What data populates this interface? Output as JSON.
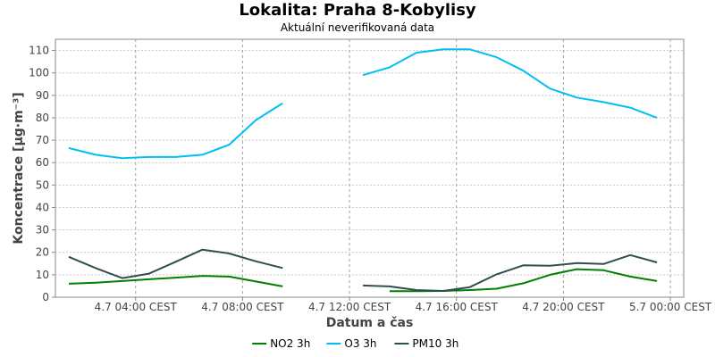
{
  "title": "Lokalita: Praha 8-Kobylisy",
  "subtitle": "Aktuální neverifikovaná data",
  "chart_data": {
    "type": "line",
    "title": "Lokalita: Praha 8-Kobylisy",
    "subtitle": "Aktuální neverifikovaná data",
    "xlabel": "Datum a čas",
    "ylabel": "Koncentrace [µg·m⁻³]",
    "ylim": [
      0,
      115
    ],
    "yticks": [
      0,
      10,
      20,
      30,
      40,
      50,
      60,
      70,
      80,
      90,
      100,
      110
    ],
    "x_range": [
      "4.7 01:00",
      "5.7 00:30"
    ],
    "x_ticks": [
      {
        "at": "4.7 04:00",
        "label": "4.7 04:00 CEST"
      },
      {
        "at": "4.7 08:00",
        "label": "4.7 08:00 CEST"
      },
      {
        "at": "4.7 12:00",
        "label": "4.7 12:00 CEST"
      },
      {
        "at": "4.7 16:00",
        "label": "4.7 16:00 CEST"
      },
      {
        "at": "4.7 20:00",
        "label": "4.7 20:00 CEST"
      },
      {
        "at": "5.7 00:00",
        "label": "5.7 00:00 CEST"
      }
    ],
    "grid": true,
    "legend_position": "bottom",
    "x": [
      "4.7 01:30",
      "4.7 02:30",
      "4.7 03:30",
      "4.7 04:30",
      "4.7 05:30",
      "4.7 06:30",
      "4.7 07:30",
      "4.7 08:30",
      "4.7 09:30",
      "4.7 10:30",
      "4.7 11:30",
      "4.7 12:30",
      "4.7 13:30",
      "4.7 14:30",
      "4.7 15:30",
      "4.7 16:30",
      "4.7 17:30",
      "4.7 18:30",
      "4.7 19:30",
      "4.7 20:30",
      "4.7 21:30",
      "4.7 22:30",
      "4.7 23:30",
      "5.7 00:30"
    ],
    "series": [
      {
        "name": "NO2 3h",
        "color": "#008000",
        "values": [
          6,
          6.5,
          7.2,
          8,
          8.7,
          9.5,
          9.2,
          7,
          4.8,
          null,
          null,
          null,
          2.7,
          2.7,
          2.8,
          3.2,
          3.8,
          6.2,
          10,
          12.5,
          12,
          9.2,
          7.2,
          null
        ]
      },
      {
        "name": "O3 3h",
        "color": "#00bff3",
        "values": [
          66.5,
          63.5,
          62,
          62.5,
          62.5,
          63.5,
          68,
          79,
          86.5,
          null,
          null,
          99,
          102.5,
          109,
          110.5,
          110.5,
          107,
          101,
          93,
          89,
          87,
          84.5,
          80,
          null
        ]
      },
      {
        "name": "PM10 3h",
        "color": "#2f4f4f",
        "values": [
          18,
          13,
          8.5,
          10.5,
          15.8,
          21.2,
          19.5,
          16,
          13,
          null,
          null,
          5.2,
          4.8,
          3.2,
          2.8,
          4.5,
          10.2,
          14.2,
          14,
          15.2,
          14.8,
          18.8,
          15.5,
          null
        ]
      }
    ]
  }
}
